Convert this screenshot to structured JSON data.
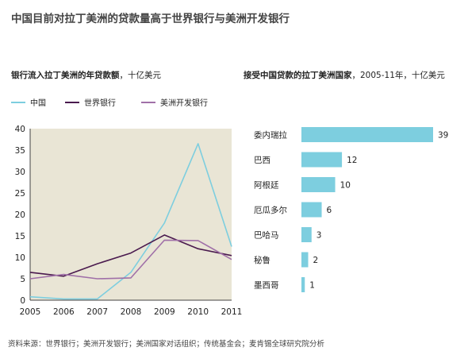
{
  "title": "中国目前对拉丁美洲的贷款量高于世界银行与美洲开发银行",
  "source": "资料来源：世界银行；美洲开发银行；美洲国家对话组织；传统基金会；麦肯锡全球研究院分析",
  "colors": {
    "plot_bg": "#e9e5d5",
    "china": "#7dcedf",
    "world_bank": "#4a1a4e",
    "idb": "#a070a8",
    "bar": "#7dcedf"
  },
  "chart_data": [
    {
      "type": "line",
      "title": "银行流入拉丁美洲的年贷款额",
      "unit": "，十亿美元",
      "x": [
        2005,
        2006,
        2007,
        2008,
        2009,
        2010,
        2011
      ],
      "ylim": [
        0,
        40
      ],
      "yticks": [
        0,
        5,
        10,
        15,
        20,
        25,
        30,
        35,
        40
      ],
      "legend_position": "top",
      "grid": false,
      "series": [
        {
          "name": "中国",
          "color": "#7dcedf",
          "values": [
            0.8,
            0.3,
            0.3,
            6.5,
            18,
            36.5,
            12.5
          ]
        },
        {
          "name": "世界银行",
          "color": "#4a1a4e",
          "values": [
            6.5,
            5.6,
            8.5,
            11,
            15.2,
            12,
            10.4
          ]
        },
        {
          "name": "美洲开发银行",
          "color": "#a070a8",
          "values": [
            5,
            6,
            5,
            5.2,
            14,
            13.9,
            9.5
          ]
        }
      ]
    },
    {
      "type": "bar",
      "orientation": "horizontal",
      "title": "接受中国贷款的拉丁美洲国家",
      "unit": "，2005-11年，十亿美元",
      "categories": [
        "委内瑞拉",
        "巴西",
        "阿根廷",
        "厄瓜多尔",
        "巴哈马",
        "秘鲁",
        "墨西哥"
      ],
      "values": [
        39,
        12,
        10,
        6,
        3,
        2,
        1
      ],
      "value_labels": [
        "39",
        "12",
        "10",
        "6",
        "3",
        "2",
        "1"
      ]
    }
  ]
}
